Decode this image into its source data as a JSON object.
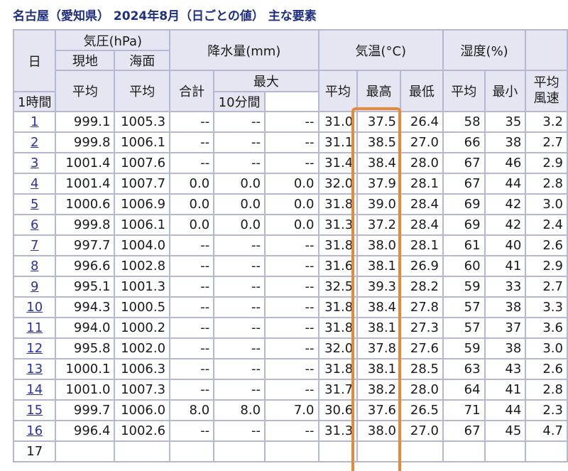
{
  "page": {
    "title": "名古屋（愛知県） 2024年8月（日ごとの値） 主な要素"
  },
  "headers": {
    "day": "日",
    "pressure": "気圧(hPa)",
    "station": "現地",
    "sea": "海面",
    "avg": "平均",
    "precip": "降水量(mm)",
    "total": "合計",
    "max": "最大",
    "h1": "1時間",
    "m10": "10分間",
    "temp": "気温(°C)",
    "tmax": "最高",
    "tmin": "最低",
    "humidity": "湿度(%)",
    "hmin": "最小",
    "wind1": "平均",
    "wind2": "風速"
  },
  "highlight": {
    "color": "#e8893a",
    "column": "最高"
  },
  "rows": [
    {
      "day": "1",
      "station": "999.1",
      "sea": "1005.3",
      "total": "--",
      "h1": "--",
      "m10": "--",
      "tavg": "31.0",
      "tmax": "37.5",
      "tmin": "26.4",
      "havg": "58",
      "hmin": "35",
      "wind": "3.2"
    },
    {
      "day": "2",
      "station": "999.8",
      "sea": "1006.1",
      "total": "--",
      "h1": "--",
      "m10": "--",
      "tavg": "31.1",
      "tmax": "38.5",
      "tmin": "27.0",
      "havg": "66",
      "hmin": "38",
      "wind": "2.7"
    },
    {
      "day": "3",
      "station": "1001.4",
      "sea": "1007.6",
      "total": "--",
      "h1": "--",
      "m10": "--",
      "tavg": "31.4",
      "tmax": "38.4",
      "tmin": "28.0",
      "havg": "67",
      "hmin": "46",
      "wind": "2.9"
    },
    {
      "day": "4",
      "station": "1001.4",
      "sea": "1007.7",
      "total": "0.0",
      "h1": "0.0",
      "m10": "0.0",
      "tavg": "32.0",
      "tmax": "37.9",
      "tmin": "28.1",
      "havg": "67",
      "hmin": "44",
      "wind": "2.8"
    },
    {
      "day": "5",
      "station": "1000.6",
      "sea": "1006.9",
      "total": "0.0",
      "h1": "0.0",
      "m10": "0.0",
      "tavg": "31.8",
      "tmax": "39.0",
      "tmin": "28.4",
      "havg": "69",
      "hmin": "42",
      "wind": "3.0"
    },
    {
      "day": "6",
      "station": "999.8",
      "sea": "1006.1",
      "total": "0.0",
      "h1": "0.0",
      "m10": "0.0",
      "tavg": "31.3",
      "tmax": "37.2",
      "tmin": "28.4",
      "havg": "69",
      "hmin": "42",
      "wind": "2.4"
    },
    {
      "day": "7",
      "station": "997.7",
      "sea": "1004.0",
      "total": "--",
      "h1": "--",
      "m10": "--",
      "tavg": "31.8",
      "tmax": "38.0",
      "tmin": "28.1",
      "havg": "61",
      "hmin": "40",
      "wind": "2.6"
    },
    {
      "day": "8",
      "station": "996.6",
      "sea": "1002.8",
      "total": "--",
      "h1": "--",
      "m10": "--",
      "tavg": "31.6",
      "tmax": "38.1",
      "tmin": "26.9",
      "havg": "60",
      "hmin": "41",
      "wind": "2.9"
    },
    {
      "day": "9",
      "station": "995.1",
      "sea": "1001.3",
      "total": "--",
      "h1": "--",
      "m10": "--",
      "tavg": "32.5",
      "tmax": "39.3",
      "tmin": "28.2",
      "havg": "59",
      "hmin": "33",
      "wind": "2.7"
    },
    {
      "day": "10",
      "station": "994.3",
      "sea": "1000.5",
      "total": "--",
      "h1": "--",
      "m10": "--",
      "tavg": "31.8",
      "tmax": "38.4",
      "tmin": "27.8",
      "havg": "57",
      "hmin": "38",
      "wind": "3.3"
    },
    {
      "day": "11",
      "station": "994.0",
      "sea": "1000.2",
      "total": "--",
      "h1": "--",
      "m10": "--",
      "tavg": "31.8",
      "tmax": "38.1",
      "tmin": "27.3",
      "havg": "57",
      "hmin": "37",
      "wind": "3.6"
    },
    {
      "day": "12",
      "station": "995.8",
      "sea": "1002.0",
      "total": "--",
      "h1": "--",
      "m10": "--",
      "tavg": "32.0",
      "tmax": "37.8",
      "tmin": "27.6",
      "havg": "59",
      "hmin": "38",
      "wind": "3.0"
    },
    {
      "day": "13",
      "station": "1000.1",
      "sea": "1006.3",
      "total": "--",
      "h1": "--",
      "m10": "--",
      "tavg": "31.8",
      "tmax": "38.1",
      "tmin": "28.5",
      "havg": "63",
      "hmin": "43",
      "wind": "2.6"
    },
    {
      "day": "14",
      "station": "1001.0",
      "sea": "1007.3",
      "total": "--",
      "h1": "--",
      "m10": "--",
      "tavg": "31.7",
      "tmax": "38.2",
      "tmin": "28.0",
      "havg": "64",
      "hmin": "41",
      "wind": "2.8"
    },
    {
      "day": "15",
      "station": "999.7",
      "sea": "1006.0",
      "total": "8.0",
      "h1": "8.0",
      "m10": "7.0",
      "tavg": "30.6",
      "tmax": "37.6",
      "tmin": "26.5",
      "havg": "71",
      "hmin": "44",
      "wind": "2.3"
    },
    {
      "day": "16",
      "station": "996.4",
      "sea": "1002.6",
      "total": "--",
      "h1": "--",
      "m10": "--",
      "tavg": "31.3",
      "tmax": "38.0",
      "tmin": "27.0",
      "havg": "67",
      "hmin": "45",
      "wind": "4.7"
    },
    {
      "day": "17",
      "station": "",
      "sea": "",
      "total": "",
      "h1": "",
      "m10": "",
      "tavg": "",
      "tmax": "",
      "tmin": "",
      "havg": "",
      "hmin": "",
      "wind": "",
      "link": false
    }
  ]
}
